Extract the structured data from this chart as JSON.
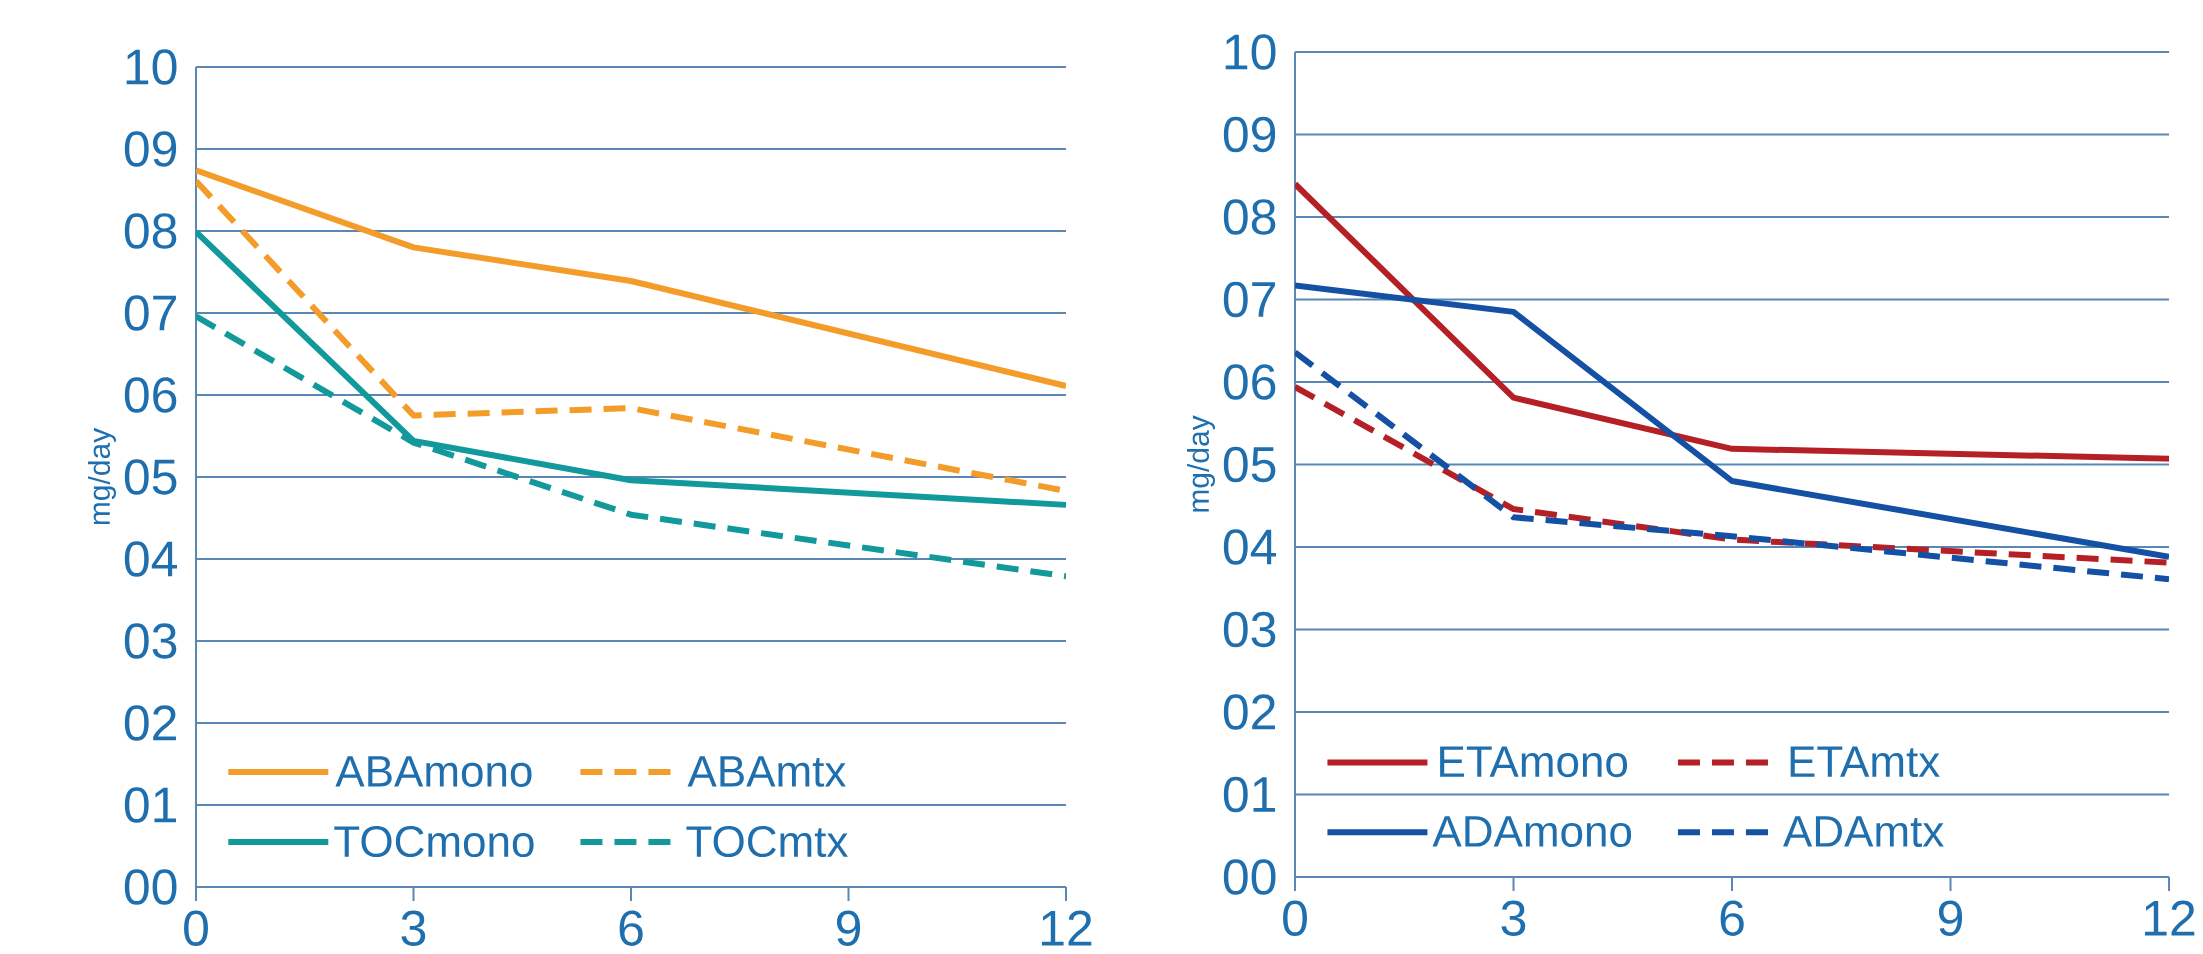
{
  "chart_data": [
    {
      "type": "line",
      "ylabel": "mg/day",
      "x": [
        0,
        3,
        6,
        12
      ],
      "xlim": [
        0,
        12
      ],
      "ylim": [
        0,
        10
      ],
      "xticks": [
        0,
        3,
        6,
        9,
        12
      ],
      "yticks": [
        {
          "value": 0,
          "label": "00"
        },
        {
          "value": 1,
          "label": "01"
        },
        {
          "value": 2,
          "label": "02"
        },
        {
          "value": 3,
          "label": "03"
        },
        {
          "value": 4,
          "label": "04"
        },
        {
          "value": 5,
          "label": "05"
        },
        {
          "value": 6,
          "label": "06"
        },
        {
          "value": 7,
          "label": "07"
        },
        {
          "value": 8,
          "label": "08"
        },
        {
          "value": 9,
          "label": "09"
        },
        {
          "value": 10,
          "label": "10"
        }
      ],
      "grid": "y",
      "legend": "bottom left",
      "series": [
        {
          "name": "ABAmono",
          "color": "#f39c2a",
          "line_style": "solid",
          "values": [
            8.74,
            7.8,
            7.39,
            6.11
          ]
        },
        {
          "name": "ABAmtx",
          "color": "#f39c2a",
          "line_style": "dashed",
          "values": [
            8.61,
            5.75,
            5.84,
            4.83
          ]
        },
        {
          "name": "TOCmono",
          "color": "#12999c",
          "line_style": "solid",
          "values": [
            7.99,
            5.44,
            4.96,
            4.66
          ]
        },
        {
          "name": "TOCmtx",
          "color": "#12999c",
          "line_style": "dashed",
          "values": [
            6.96,
            5.42,
            4.54,
            3.79
          ]
        }
      ]
    },
    {
      "type": "line",
      "ylabel": "mg/day",
      "x": [
        0,
        3,
        6,
        12
      ],
      "xlim": [
        0,
        12
      ],
      "ylim": [
        0,
        10
      ],
      "xticks": [
        0,
        3,
        6,
        9,
        12
      ],
      "yticks": [
        {
          "value": 0,
          "label": "00"
        },
        {
          "value": 1,
          "label": "01"
        },
        {
          "value": 2,
          "label": "02"
        },
        {
          "value": 3,
          "label": "03"
        },
        {
          "value": 4,
          "label": "04"
        },
        {
          "value": 5,
          "label": "05"
        },
        {
          "value": 6,
          "label": "06"
        },
        {
          "value": 7,
          "label": "07"
        },
        {
          "value": 8,
          "label": "08"
        },
        {
          "value": 9,
          "label": "09"
        },
        {
          "value": 10,
          "label": "10"
        }
      ],
      "grid": "y",
      "legend": "bottom left",
      "series": [
        {
          "name": "ETAmono",
          "color": "#b52027",
          "line_style": "solid",
          "values": [
            8.4,
            5.81,
            5.19,
            5.07
          ]
        },
        {
          "name": "ETAmtx",
          "color": "#b52027",
          "line_style": "dashed",
          "values": [
            5.94,
            4.46,
            4.09,
            3.81
          ]
        },
        {
          "name": "ADAmono",
          "color": "#1450a3",
          "line_style": "solid",
          "values": [
            7.17,
            6.85,
            4.8,
            3.88
          ]
        },
        {
          "name": "ADAmtx",
          "color": "#1450a3",
          "line_style": "dashed",
          "values": [
            6.36,
            4.36,
            4.13,
            3.61
          ]
        }
      ]
    }
  ]
}
